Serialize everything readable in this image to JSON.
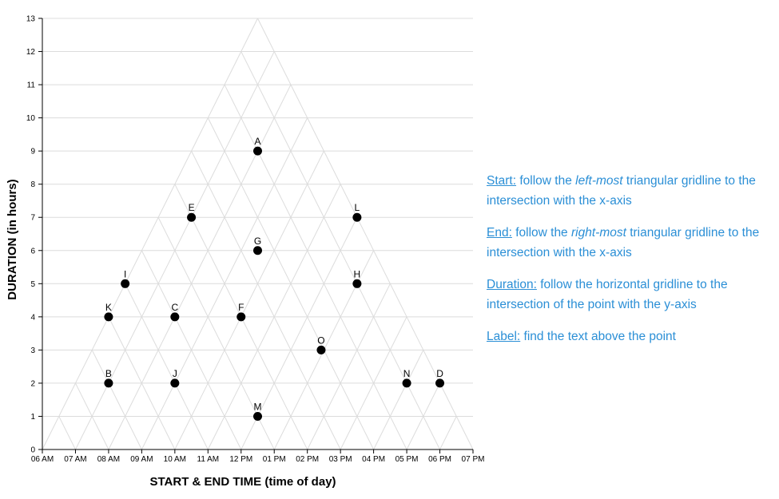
{
  "chart_data": {
    "type": "scatter",
    "xlabel": "START & END TIME (time of day)",
    "ylabel": "DURATION (in hours)",
    "x_ticks": [
      "06 AM",
      "07 AM",
      "08 AM",
      "09 AM",
      "10 AM",
      "11 AM",
      "12 PM",
      "01 PM",
      "02 PM",
      "03 PM",
      "04 PM",
      "05 PM",
      "06 PM",
      "07 PM"
    ],
    "y_ticks": [
      "0",
      "1",
      "2",
      "3",
      "4",
      "5",
      "6",
      "7",
      "8",
      "9",
      "10",
      "11",
      "12",
      "13"
    ],
    "xlim": [
      6,
      19
    ],
    "ylim": [
      0,
      13
    ],
    "grid": "triangular",
    "points": [
      {
        "label": "A",
        "start": "08:00 AM",
        "end": "05:00 PM",
        "duration": 9
      },
      {
        "label": "B",
        "start": "07:00 AM",
        "end": "09:00 AM",
        "duration": 2
      },
      {
        "label": "C",
        "start": "08:00 AM",
        "end": "12:00 PM",
        "duration": 4
      },
      {
        "label": "D",
        "start": "05:00 PM",
        "end": "07:00 PM",
        "duration": 2
      },
      {
        "label": "E",
        "start": "07:00 AM",
        "end": "02:00 PM",
        "duration": 7
      },
      {
        "label": "F",
        "start": "10:00 AM",
        "end": "02:00 PM",
        "duration": 4
      },
      {
        "label": "G",
        "start": "09:30 AM",
        "end": "03:30 PM",
        "duration": 6
      },
      {
        "label": "H",
        "start": "01:00 PM",
        "end": "06:00 PM",
        "duration": 5
      },
      {
        "label": "I",
        "start": "06:00 AM",
        "end": "11:00 AM",
        "duration": 5
      },
      {
        "label": "J",
        "start": "09:00 AM",
        "end": "11:00 AM",
        "duration": 2
      },
      {
        "label": "K",
        "start": "06:00 AM",
        "end": "10:00 AM",
        "duration": 4
      },
      {
        "label": "L",
        "start": "12:00 PM",
        "end": "07:00 PM",
        "duration": 7
      },
      {
        "label": "M",
        "start": "12:00 PM",
        "end": "01:00 PM",
        "duration": 1
      },
      {
        "label": "N",
        "start": "04:00 PM",
        "end": "06:00 PM",
        "duration": 2
      },
      {
        "label": "O",
        "start": "12:55 PM",
        "end": "03:55 PM",
        "duration": 3
      }
    ]
  },
  "instructions": [
    {
      "key": "Start:",
      "parts": [
        {
          "t": " follow the "
        },
        {
          "t": "left-most",
          "em": true
        },
        {
          "t": " triangular gridline to the intersection with the x-axis"
        }
      ]
    },
    {
      "key": "End:",
      "parts": [
        {
          "t": " follow the "
        },
        {
          "t": "right-most",
          "em": true
        },
        {
          "t": " triangular gridline to the intersection with the x-axis"
        }
      ]
    },
    {
      "key": "Duration:",
      "parts": [
        {
          "t": " follow the horizontal gridline to the intersection of the point with the y-axis"
        }
      ]
    },
    {
      "key": "Label:",
      "parts": [
        {
          "t": " find the text above the point"
        }
      ]
    }
  ]
}
